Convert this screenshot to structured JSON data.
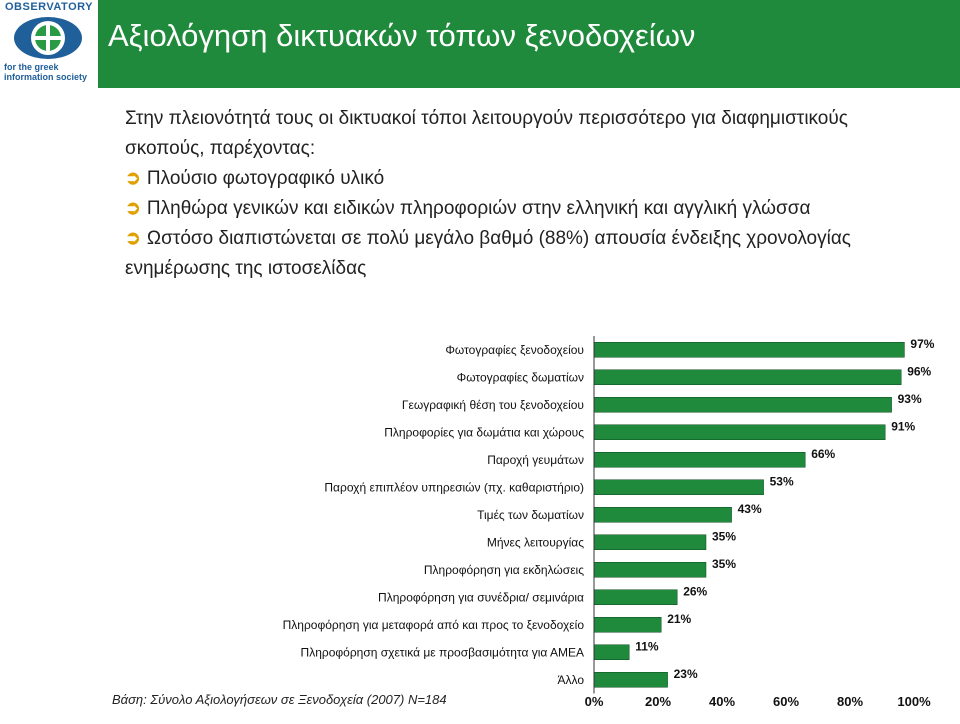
{
  "header": {
    "title": "Αξιολόγηση δικτυακών τόπων ξενοδοχείων",
    "logo_top": "OBSERVATORY",
    "logo_bottom": "for the greek information society"
  },
  "bullets": {
    "intro": "Στην πλειονότητά τους οι δικτυακοί τόποι λειτουργούν περισσότερο για διαφημιστικούς σκοπούς, παρέχοντας:",
    "arrow": "➲",
    "items": [
      "Πλούσιο φωτογραφικό υλικό",
      "Πληθώρα γενικών και ειδικών πληροφοριών στην ελληνική και αγγλική γλώσσα",
      "Ωστόσο διαπιστώνεται σε πολύ μεγάλο βαθμό (88%) απουσία ένδειξης χρονολογίας ενημέρωσης της ιστοσελίδας"
    ]
  },
  "footnote": "Βάση: Σύνολο Αξιολογήσεων σε Ξενοδοχεία (2007) N=184",
  "colors": {
    "bar": "#1f8a3c",
    "header": "#1f8a3c",
    "arrow": "#e0a000"
  },
  "chart_data": {
    "type": "bar",
    "orientation": "horizontal",
    "categories": [
      "Φωτογραφίες ξενοδοχείου",
      "Φωτογραφίες δωματίων",
      "Γεωγραφική θέση του ξενοδοχείου",
      "Πληροφορίες για δωμάτια και χώρους",
      "Παροχή γευμάτων",
      "Παροχή επιπλέον υπηρεσιών (πχ. καθαριστήριο)",
      "Τιμές των δωματίων",
      "Μήνες λειτουργίας",
      "Πληροφόρηση για εκδηλώσεις",
      "Πληροφόρηση για συνέδρια/ σεμινάρια",
      "Πληροφόρηση για μεταφορά από και προς το ξενοδοχείο",
      "Πληροφόρηση σχετικά με προσβασιμότητα για ΑΜΕΑ",
      "Άλλο"
    ],
    "values": [
      97,
      96,
      93,
      91,
      66,
      53,
      43,
      35,
      35,
      26,
      21,
      11,
      23
    ],
    "value_labels": [
      "97%",
      "96%",
      "93%",
      "91%",
      "66%",
      "53%",
      "43%",
      "35%",
      "35%",
      "26%",
      "21%",
      "11%",
      "23%"
    ],
    "xlim": [
      0,
      100
    ],
    "ticks": [
      "0%",
      "20%",
      "40%",
      "60%",
      "80%",
      "100%"
    ],
    "grid": false
  }
}
